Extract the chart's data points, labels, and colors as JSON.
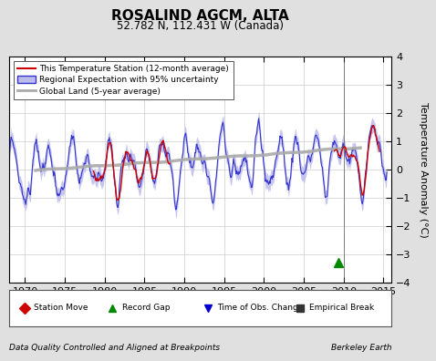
{
  "title": "ROSALIND AGCM, ALTA",
  "subtitle": "52.782 N, 112.431 W (Canada)",
  "xlabel_left": "Data Quality Controlled and Aligned at Breakpoints",
  "xlabel_right": "Berkeley Earth",
  "ylabel": "Temperature Anomaly (°C)",
  "xlim": [
    1968,
    2016
  ],
  "ylim": [
    -4,
    4
  ],
  "yticks": [
    -4,
    -3,
    -2,
    -1,
    0,
    1,
    2,
    3,
    4
  ],
  "xticks": [
    1970,
    1975,
    1980,
    1985,
    1990,
    1995,
    2000,
    2005,
    2010,
    2015
  ],
  "bg_color": "#e0e0e0",
  "plot_bg_color": "#ffffff",
  "station_color": "#cc0000",
  "regional_color": "#3333cc",
  "regional_fill_color": "#bbbbee",
  "global_color": "#aaaaaa",
  "legend_labels": [
    "This Temperature Station (12-month average)",
    "Regional Expectation with 95% uncertainty",
    "Global Land (5-year average)"
  ],
  "marker_labels": [
    "Station Move",
    "Record Gap",
    "Time of Obs. Change",
    "Empirical Break"
  ],
  "marker_colors": [
    "#cc0000",
    "#008800",
    "#0000cc",
    "#333333"
  ],
  "marker_styles": [
    "D",
    "^",
    "v",
    "s"
  ],
  "empirical_break_x": 2009.3,
  "empirical_break_y": -3.3,
  "vline_x": 2010.0
}
